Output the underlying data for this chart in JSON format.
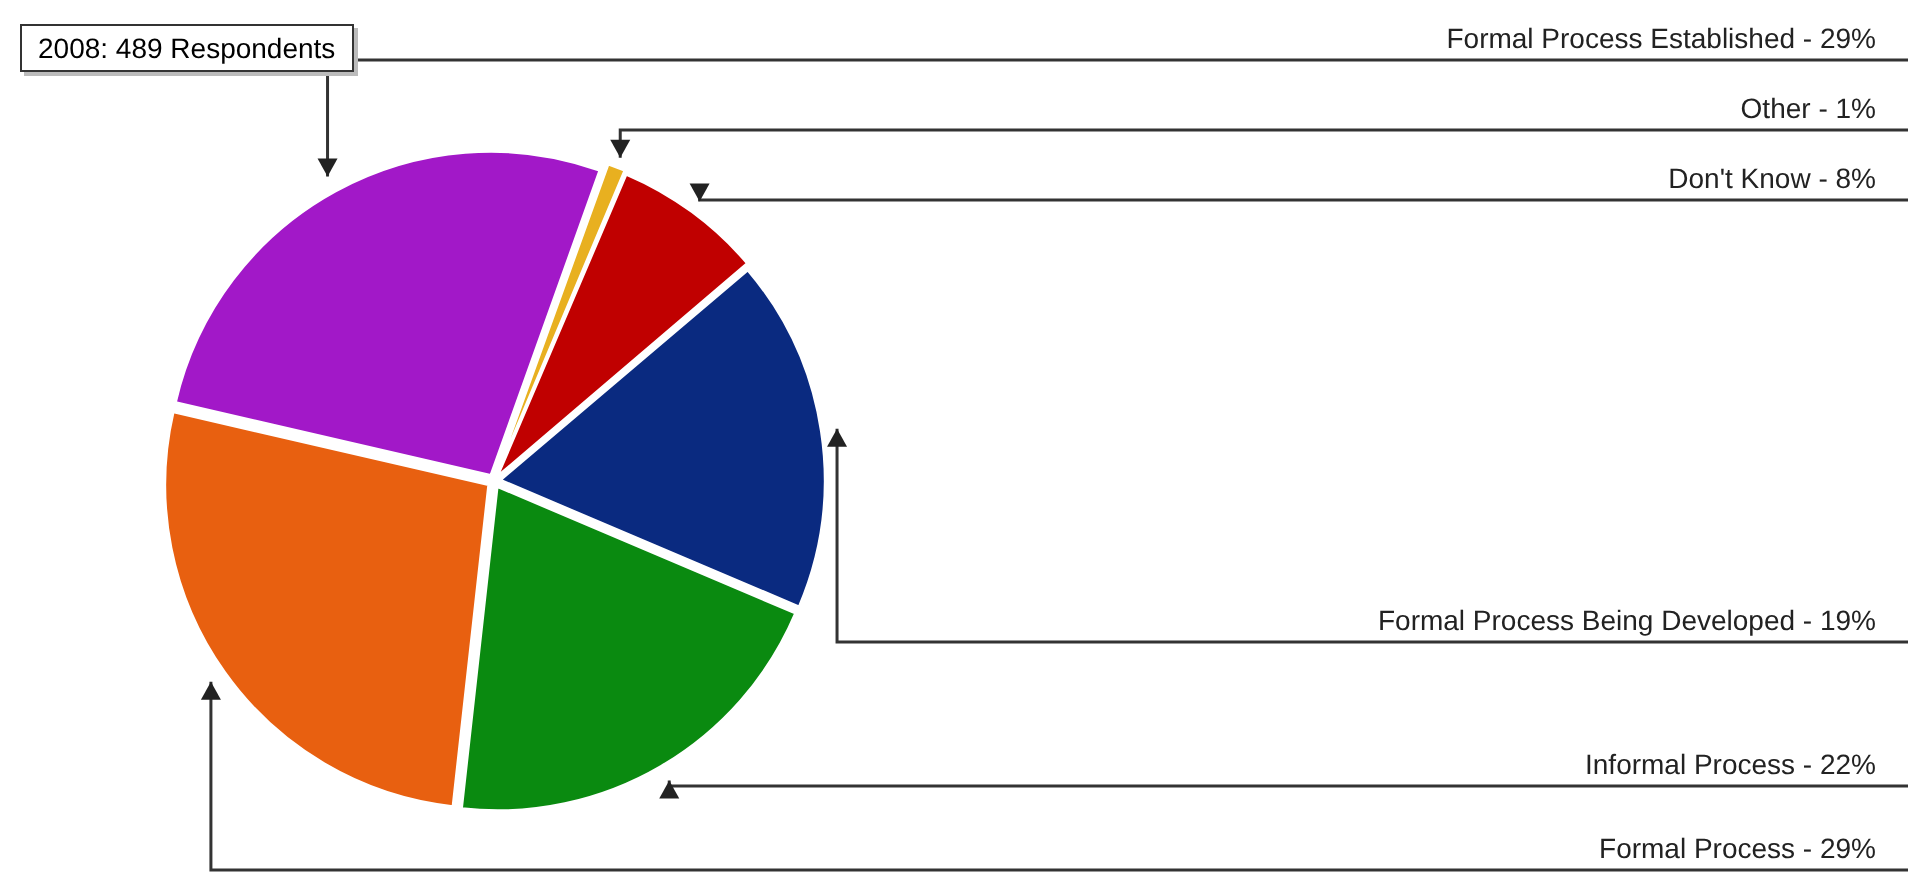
{
  "chart_data": {
    "type": "pie",
    "title": "2008: 489 Respondents",
    "categories": [
      "Formal Process Established",
      "Other",
      "Don't Know",
      "Formal Process Being Developed",
      "Informal Process",
      "Formal Process"
    ],
    "values": [
      29,
      1,
      8,
      19,
      22,
      29
    ],
    "value_labels": [
      "29%",
      "1%",
      "8%",
      "19%",
      "22%",
      "29%"
    ],
    "colors": [
      "#a218c8",
      "#e8b020",
      "#c00000",
      "#0a2a80",
      "#0a8a10",
      "#e86010"
    ],
    "legend": false
  }
}
